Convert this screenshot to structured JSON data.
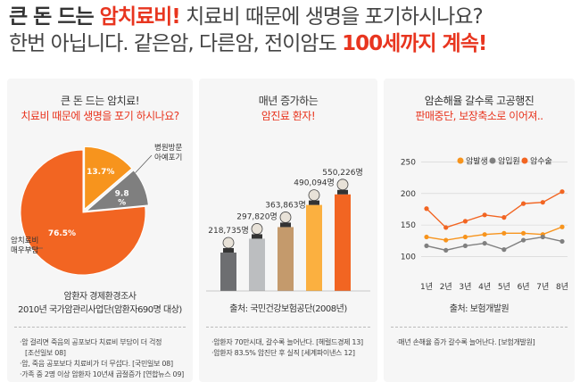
{
  "headline": {
    "line1_bold": "큰 돈 드는 ",
    "line1_accent": "암치료비!",
    "line1_rest": " 치료비 때문에 생명을 포기하시나요?",
    "line2_rest": "한번 아닙니다. 같은암, 다른암, 전이암도 ",
    "line2_accent": "100세까지 계속!"
  },
  "colors": {
    "accent": "#e8351f",
    "orange": "#f7941d",
    "gray": "#888888",
    "light_orange": "#fbc16b",
    "dark_orange": "#f26522"
  },
  "panel1": {
    "title1": "큰 돈 드는 암치료!",
    "title2": "치료비 때문에 생명을 포기 하시나요?",
    "label_left": "암치료비\n매우부담",
    "label_right": "병원방문\n아예포기",
    "caption1": "암환자 경제환경조사",
    "caption2": "2010년 국가암관리사업단(암환자690명 대상)",
    "notes": [
      {
        "text": "암 걸리면 죽음의 공포보다 치료비 부담이 더 걱정",
        "sub": false
      },
      {
        "text": "[조선일보 08]",
        "sub": true
      },
      {
        "text": "암, 죽음 공포보다 치료비가 더 무섭다. [국민일보 08]",
        "sub": false
      },
      {
        "text": "가족 중 2명 이상 암환자 10년새 곱절증가 [연합뉴스 09]",
        "sub": false
      }
    ]
  },
  "panel2": {
    "title1": "매년 증가하는",
    "title2": "암진료 환자!",
    "caption": "출처: 국민건강보험공단(2008년)",
    "notes": [
      {
        "text": "암환자 70만시대, 갈수록 늘어난다. [헤럴드경제 13]",
        "sub": false
      },
      {
        "text": "암환자 83.5% 암진단 후 실직 [세계파이낸스 12]",
        "sub": false
      }
    ]
  },
  "panel3": {
    "title1": "암손해율 갈수록 고공행진",
    "title2": "판매중단, 보장축소로 이어져..",
    "caption": "출처: 보험개발원",
    "notes": [
      {
        "text": "매년 손해율 증가 갈수록 늘어난다. [보험개발원]",
        "sub": false
      }
    ]
  },
  "chart_data": [
    {
      "type": "pie",
      "labels": [
        "암치료비 매우부담",
        "병원방문 아예포기",
        ""
      ],
      "values": [
        76.5,
        13.7,
        9.8
      ],
      "value_labels": [
        "76.5%",
        "13.7%",
        "9.8\n%"
      ],
      "colors": [
        "#f26522",
        "#f7941d",
        "#7f7f7f"
      ]
    },
    {
      "type": "bar",
      "categories": [
        "",
        "",
        "",
        "",
        ""
      ],
      "values": [
        218735,
        297820,
        363863,
        490094,
        550226
      ],
      "value_labels": [
        "218,735명",
        "297,820명",
        "363,863명",
        "490,094명",
        "550,226명"
      ],
      "colors": [
        "#6d6e71",
        "#bcbec0",
        "#c49a6c",
        "#fbb040",
        "#f26522"
      ],
      "ylim": [
        0,
        600000
      ]
    },
    {
      "type": "line",
      "categories": [
        "1년",
        "2년",
        "3년",
        "4년",
        "5년",
        "6년",
        "7년",
        "8년"
      ],
      "series": [
        {
          "name": "암발생",
          "color": "#f7941d",
          "values": [
            131,
            126,
            131,
            135,
            137,
            137,
            135,
            147
          ]
        },
        {
          "name": "암입원",
          "color": "#808080",
          "values": [
            117,
            110,
            117,
            121,
            111,
            126,
            131,
            124
          ]
        },
        {
          "name": "암수술",
          "color": "#f26522",
          "values": [
            176,
            146,
            156,
            166,
            162,
            184,
            186,
            203
          ]
        }
      ],
      "yticks": [
        100,
        150,
        200,
        250
      ],
      "ylim": [
        85,
        255
      ],
      "grid": true,
      "legend": "top"
    }
  ]
}
